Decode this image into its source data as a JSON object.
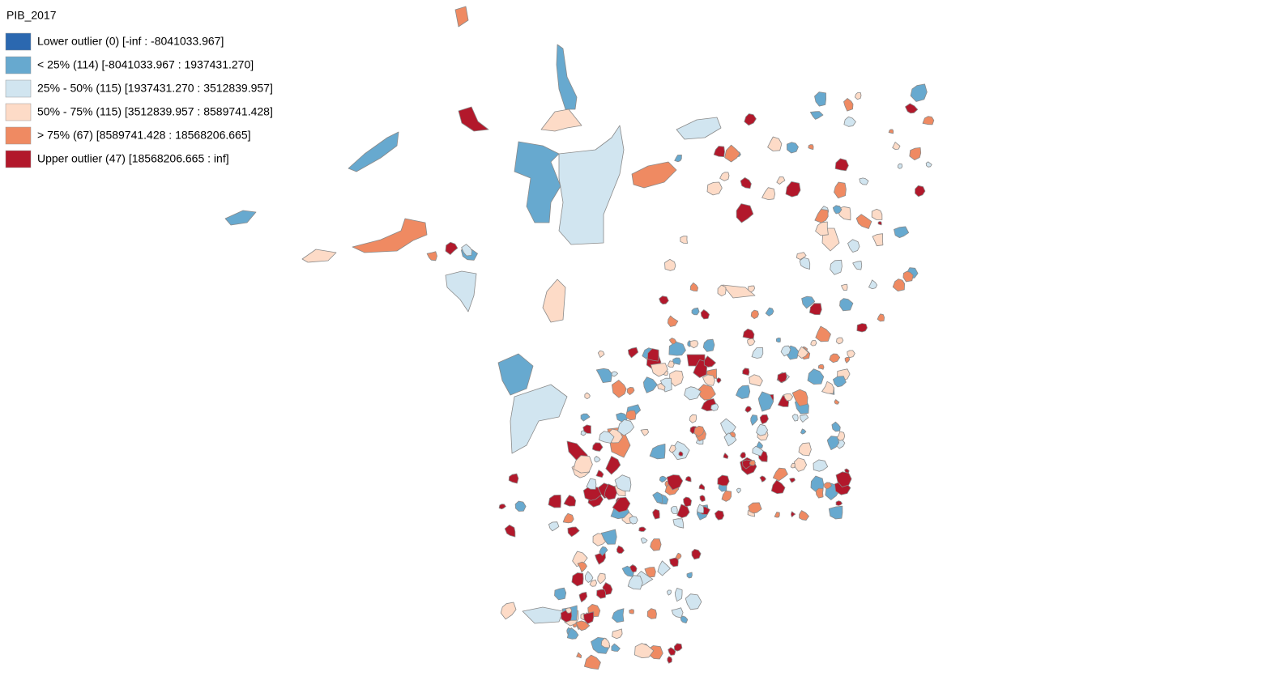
{
  "legend": {
    "title": "PIB_2017",
    "items": [
      {
        "label": "Lower outlier (0)  [-inf : -8041033.967]",
        "color": "#2b68b0"
      },
      {
        "label": "< 25% (114)  [-8041033.967 : 1937431.270]",
        "color": "#67a9cf"
      },
      {
        "label": "25% - 50% (115)  [1937431.270 : 3512839.957]",
        "color": "#d1e5f0"
      },
      {
        "label": "50% - 75% (115)  [3512839.957 : 8589741.428]",
        "color": "#fddbc7"
      },
      {
        "label": "> 75% (67)  [8589741.428 : 18568206.665]",
        "color": "#ef8a62"
      },
      {
        "label": "Upper outlier (47)  [18568206.665 : inf]",
        "color": "#b2182b"
      }
    ]
  }
}
